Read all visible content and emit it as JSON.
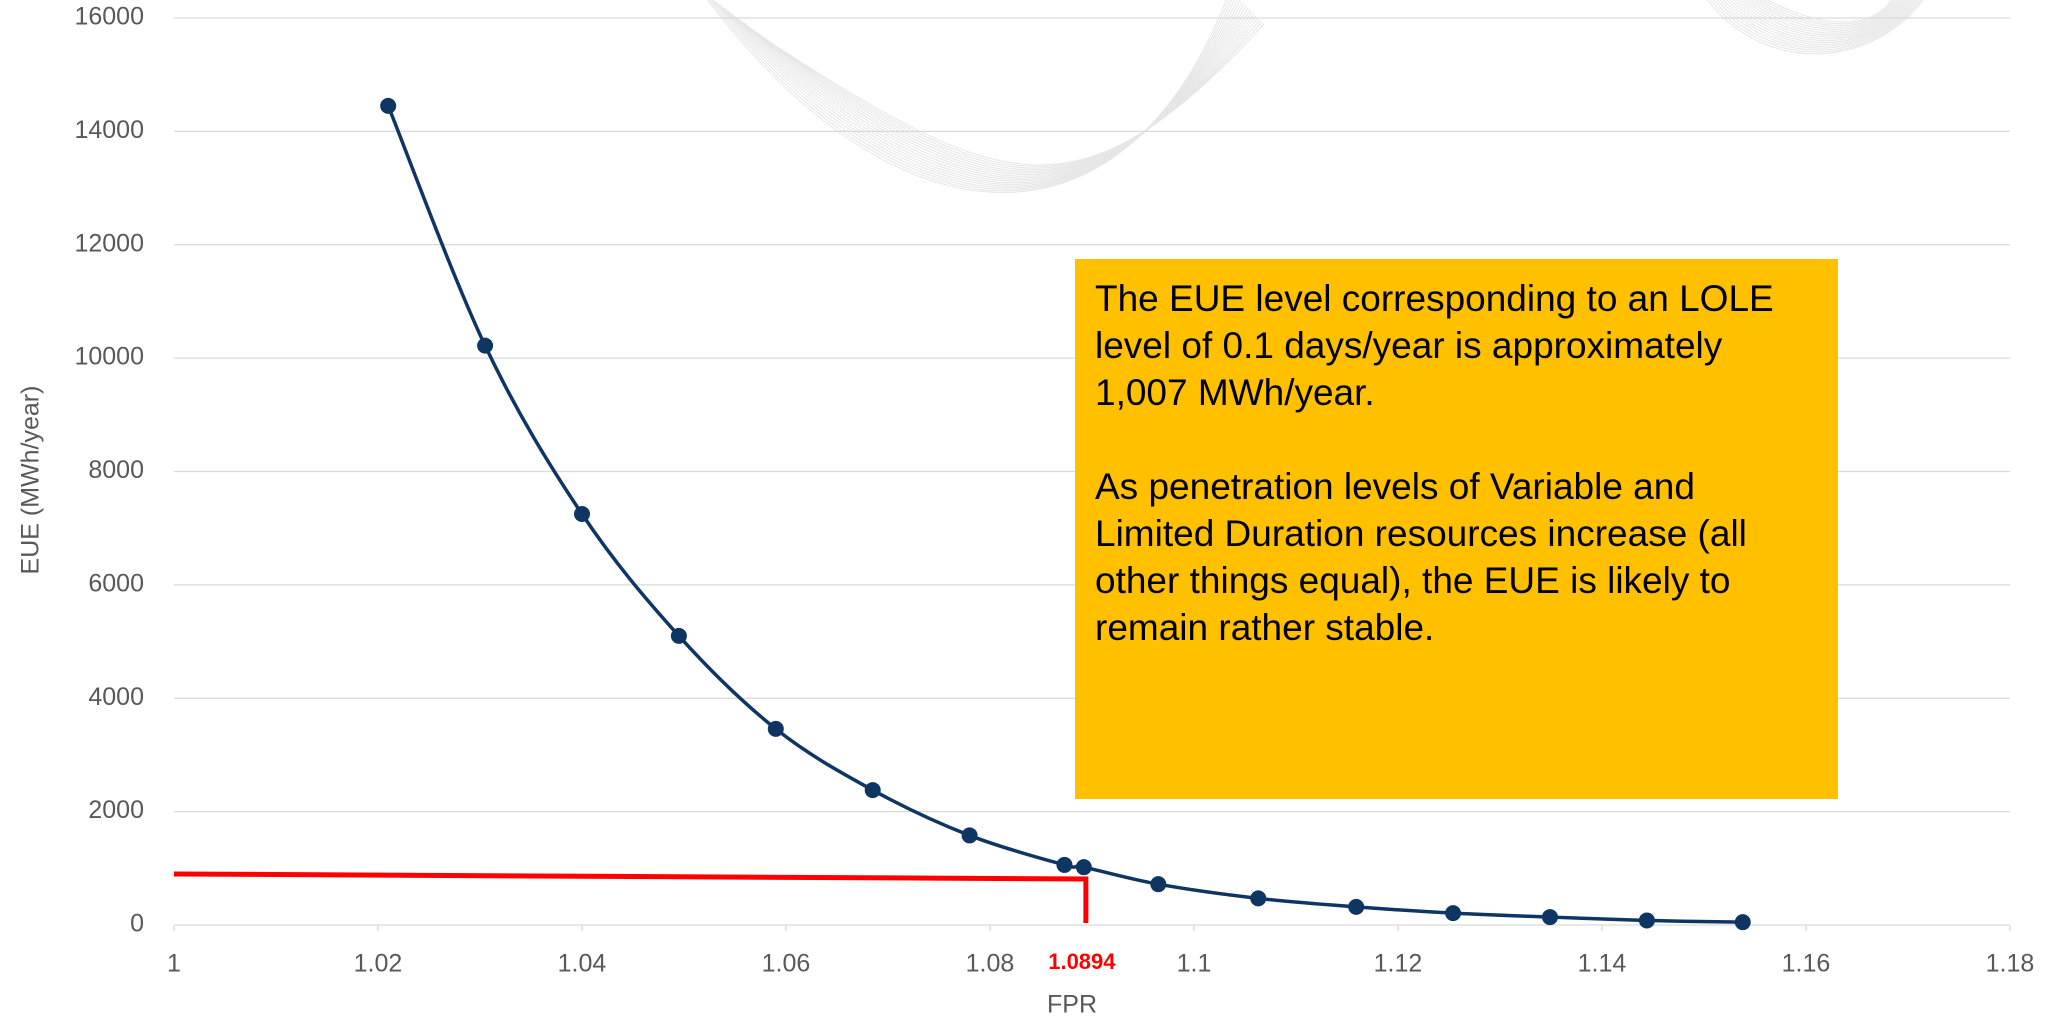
{
  "chart_data": {
    "type": "scatter",
    "x_label": "FPR",
    "y_label": "EUE (MWh/year)",
    "xlim": [
      1,
      1.18
    ],
    "xticks": [
      1,
      1.02,
      1.04,
      1.06,
      1.08,
      1.1,
      1.12,
      1.14,
      1.16,
      1.18
    ],
    "ylim": [
      0,
      16000
    ],
    "yticks": [
      0,
      2000,
      4000,
      6000,
      8000,
      10000,
      12000,
      14000,
      16000
    ],
    "grid": true,
    "smooth": true,
    "series": [
      {
        "color": "#0f3563",
        "x": [
          1.021,
          1.0305,
          1.04,
          1.0495,
          1.059,
          1.0685,
          1.078,
          1.0873,
          1.0892,
          1.0965,
          1.1063,
          1.1159,
          1.1254,
          1.1349,
          1.1444,
          1.1538
        ],
        "values": [
          14450,
          10220,
          7250,
          5100,
          3460,
          2380,
          1580,
          1060,
          1020,
          720,
          470,
          320,
          210,
          140,
          80,
          50
        ]
      }
    ],
    "ref_line": {
      "x": 1.0894,
      "y": 900,
      "color": "#ff0000"
    },
    "annotation": [
      "The EUE level corresponding to an LOLE level of 0.1 days/year is approximately 1,007 MWh/year.",
      "As penetration levels of Variable and Limited Duration resources increase (all other things equal), the EUE is likely to remain rather stable."
    ]
  }
}
